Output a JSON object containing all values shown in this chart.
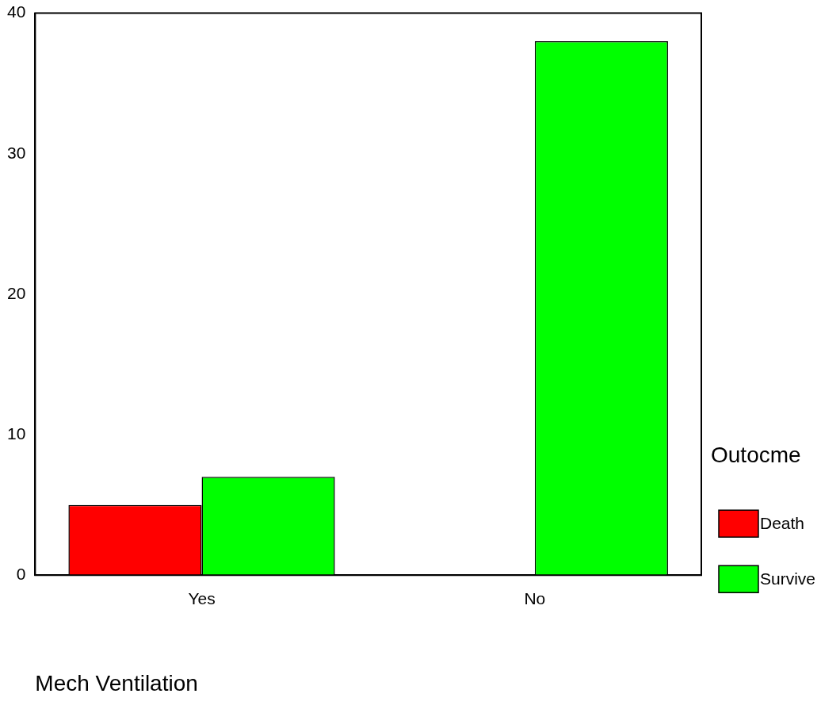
{
  "chart_data": {
    "type": "bar",
    "xlabel": "Mech Ventilation",
    "legend_title": "Outocme",
    "categories": [
      "Yes",
      "No"
    ],
    "series": [
      {
        "name": "Death",
        "color": "#ff0000",
        "values": [
          5,
          0
        ]
      },
      {
        "name": "Survive",
        "color": "#00ff00",
        "values": [
          7,
          38
        ]
      }
    ],
    "ylim": [
      0,
      40
    ],
    "yticks": [
      0,
      10,
      20,
      30,
      40
    ],
    "grid": false,
    "legend": "bottom right"
  }
}
